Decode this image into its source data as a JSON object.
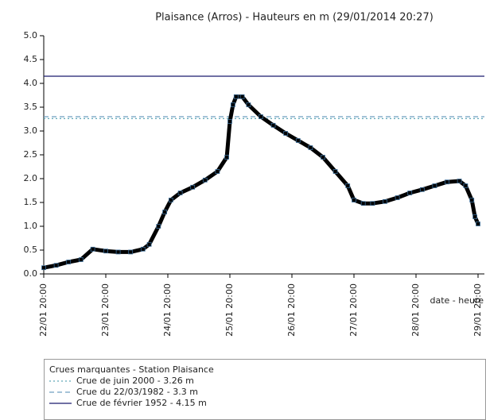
{
  "chart_data": {
    "type": "line",
    "title": "Plaisance (Arros) - Hauteurs en m (29/01/2014 20:27)",
    "x_label": "date - heure",
    "xlim": [
      0,
      7
    ],
    "xticks": [
      {
        "value": 0,
        "label": "22/01 20:00"
      },
      {
        "value": 1,
        "label": "23/01 20:00"
      },
      {
        "value": 2,
        "label": "24/01 20:00"
      },
      {
        "value": 3,
        "label": "25/01 20:00"
      },
      {
        "value": 4,
        "label": "26/01 20:00"
      },
      {
        "value": 5,
        "label": "27/01 20:00"
      },
      {
        "value": 6,
        "label": "28/01 20:00"
      },
      {
        "value": 7,
        "label": "29/01 20:00"
      }
    ],
    "ylim": [
      0,
      5
    ],
    "yticks": [
      {
        "value": 0,
        "label": "0.0"
      },
      0.5,
      {
        "value": 1,
        "label": "1.0"
      },
      1.5,
      {
        "value": 2,
        "label": "2.0"
      },
      2.5,
      {
        "value": 3,
        "label": "3.0"
      },
      3.5,
      {
        "value": 4,
        "label": "4.0"
      },
      4.5,
      {
        "value": 5,
        "label": "5.0"
      }
    ],
    "x": [
      0,
      0.2,
      0.4,
      0.6,
      0.79,
      1.0,
      1.2,
      1.4,
      1.6,
      1.7,
      1.85,
      1.95,
      2.05,
      2.2,
      2.4,
      2.6,
      2.8,
      2.95,
      3.0,
      3.05,
      3.1,
      3.2,
      3.3,
      3.5,
      3.7,
      3.9,
      4.1,
      4.3,
      4.5,
      4.7,
      4.9,
      5.0,
      5.15,
      5.3,
      5.5,
      5.7,
      5.9,
      6.1,
      6.3,
      6.5,
      6.7,
      6.8,
      6.9,
      6.95,
      7.0
    ],
    "series": [
      {
        "color": "#000000",
        "marker_color": "#3d6e99",
        "values": [
          0.13,
          0.18,
          0.25,
          0.3,
          0.52,
          0.48,
          0.46,
          0.46,
          0.52,
          0.62,
          1.0,
          1.3,
          1.55,
          1.7,
          1.82,
          1.97,
          2.15,
          2.45,
          3.2,
          3.55,
          3.72,
          3.72,
          3.55,
          3.3,
          3.12,
          2.95,
          2.8,
          2.65,
          2.45,
          2.15,
          1.85,
          1.55,
          1.48,
          1.48,
          1.52,
          1.6,
          1.7,
          1.77,
          1.85,
          1.93,
          1.95,
          1.85,
          1.55,
          1.2,
          1.05
        ]
      }
    ],
    "reference_lines": [
      {
        "name": "Crue de juin 2000 - 3.26 m",
        "value": 3.26,
        "color": "#5fa8b8",
        "style": "dotted"
      },
      {
        "name": "Crue du 22/03/1982 - 3.3 m",
        "value": 3.3,
        "color": "#6f9fc0",
        "style": "dashed"
      },
      {
        "name": "Crue de février 1952 - 4.15 m",
        "value": 4.15,
        "color": "#1a1a6e",
        "style": "solid"
      }
    ],
    "legend_title": "Crues marquantes - Station Plaisance"
  }
}
